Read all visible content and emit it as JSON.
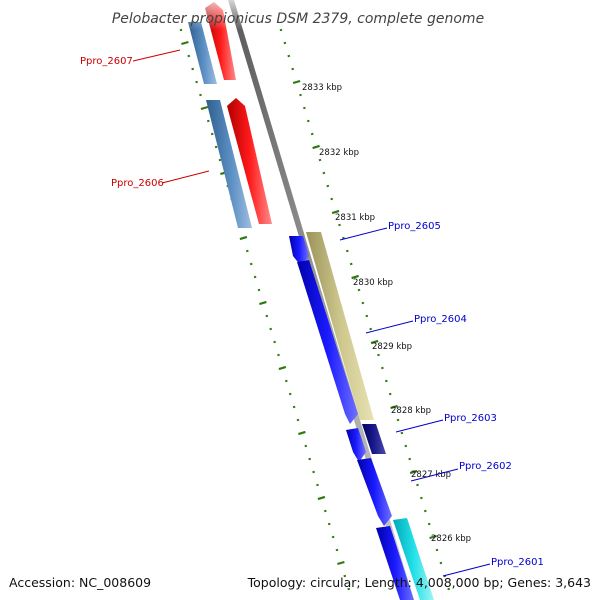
{
  "title": "Pelobacter propionicus DSM 2379, complete genome",
  "footer": {
    "accession": "Accession: NC_008609",
    "topology": "Topology: circular; Length: 4,008,000 bp; Genes: 3,643"
  },
  "colors": {
    "backbone": "#808080",
    "tick": "#2f7a10",
    "label_red": "#cc0000",
    "label_blue": "#0000cc"
  },
  "position_labels": [
    "2833 kbp",
    "2832 kbp",
    "2831 kbp",
    "2830 kbp",
    "2829 kbp",
    "2828 kbp",
    "2827 kbp",
    "2826 kbp"
  ],
  "genes": [
    {
      "name": "Ppro_2607",
      "strand": "reverse",
      "label_color": "#cc0000"
    },
    {
      "name": "Ppro_2606",
      "strand": "reverse",
      "label_color": "#cc0000"
    },
    {
      "name": "Ppro_2605",
      "strand": "forward",
      "label_color": "#0000cc"
    },
    {
      "name": "Ppro_2604",
      "strand": "forward",
      "label_color": "#0000cc"
    },
    {
      "name": "Ppro_2603",
      "strand": "forward",
      "label_color": "#0000cc"
    },
    {
      "name": "Ppro_2602",
      "strand": "forward",
      "label_color": "#0000cc"
    },
    {
      "name": "Ppro_2601",
      "strand": "forward",
      "label_color": "#0000cc"
    }
  ]
}
